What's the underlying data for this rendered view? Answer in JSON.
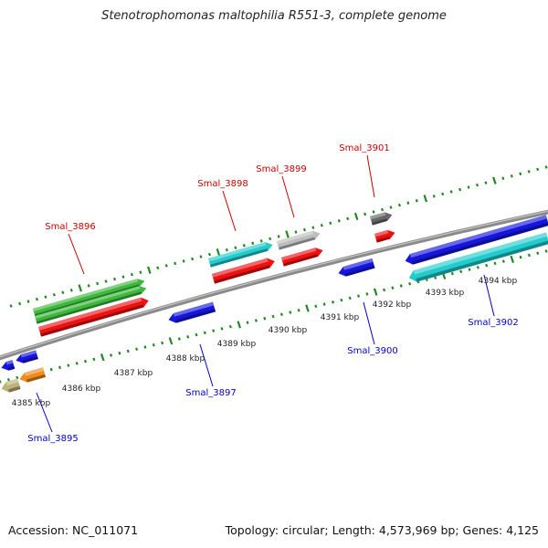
{
  "title": "Stenotrophomonas maltophilia R551-3, complete genome",
  "footer": {
    "accession": "Accession: NC_011071",
    "topology": "Topology: circular; Length: 4,573,969 bp; Genes: 4,125"
  },
  "colors": {
    "forward_label": "#cc0000",
    "reverse_label": "#0000cc",
    "backbone": "#8a8a8a",
    "ticks": "#228822",
    "green_feature": "#3cb83c",
    "red_feature": "#ee1111",
    "cyan_feature": "#22cccc",
    "blue_feature": "#1515dd",
    "gray_feature": "#bdbdbd",
    "dark_gray_feature": "#666666",
    "orange_feature": "#f08a1a",
    "khaki_feature": "#bdb27a"
  },
  "kbp_ticks": [
    "4385 kbp",
    "4386 kbp",
    "4387 kbp",
    "4388 kbp",
    "4389 kbp",
    "4390 kbp",
    "4391 kbp",
    "4392 kbp",
    "4393 kbp",
    "4394 kbp"
  ],
  "forward_genes": [
    {
      "label": "Smal_3896"
    },
    {
      "label": "Smal_3898"
    },
    {
      "label": "Smal_3899"
    },
    {
      "label": "Smal_3901"
    }
  ],
  "reverse_genes": [
    {
      "label": "Smal_3895"
    },
    {
      "label": "Smal_3897"
    },
    {
      "label": "Smal_3900"
    },
    {
      "label": "Smal_3902"
    }
  ]
}
